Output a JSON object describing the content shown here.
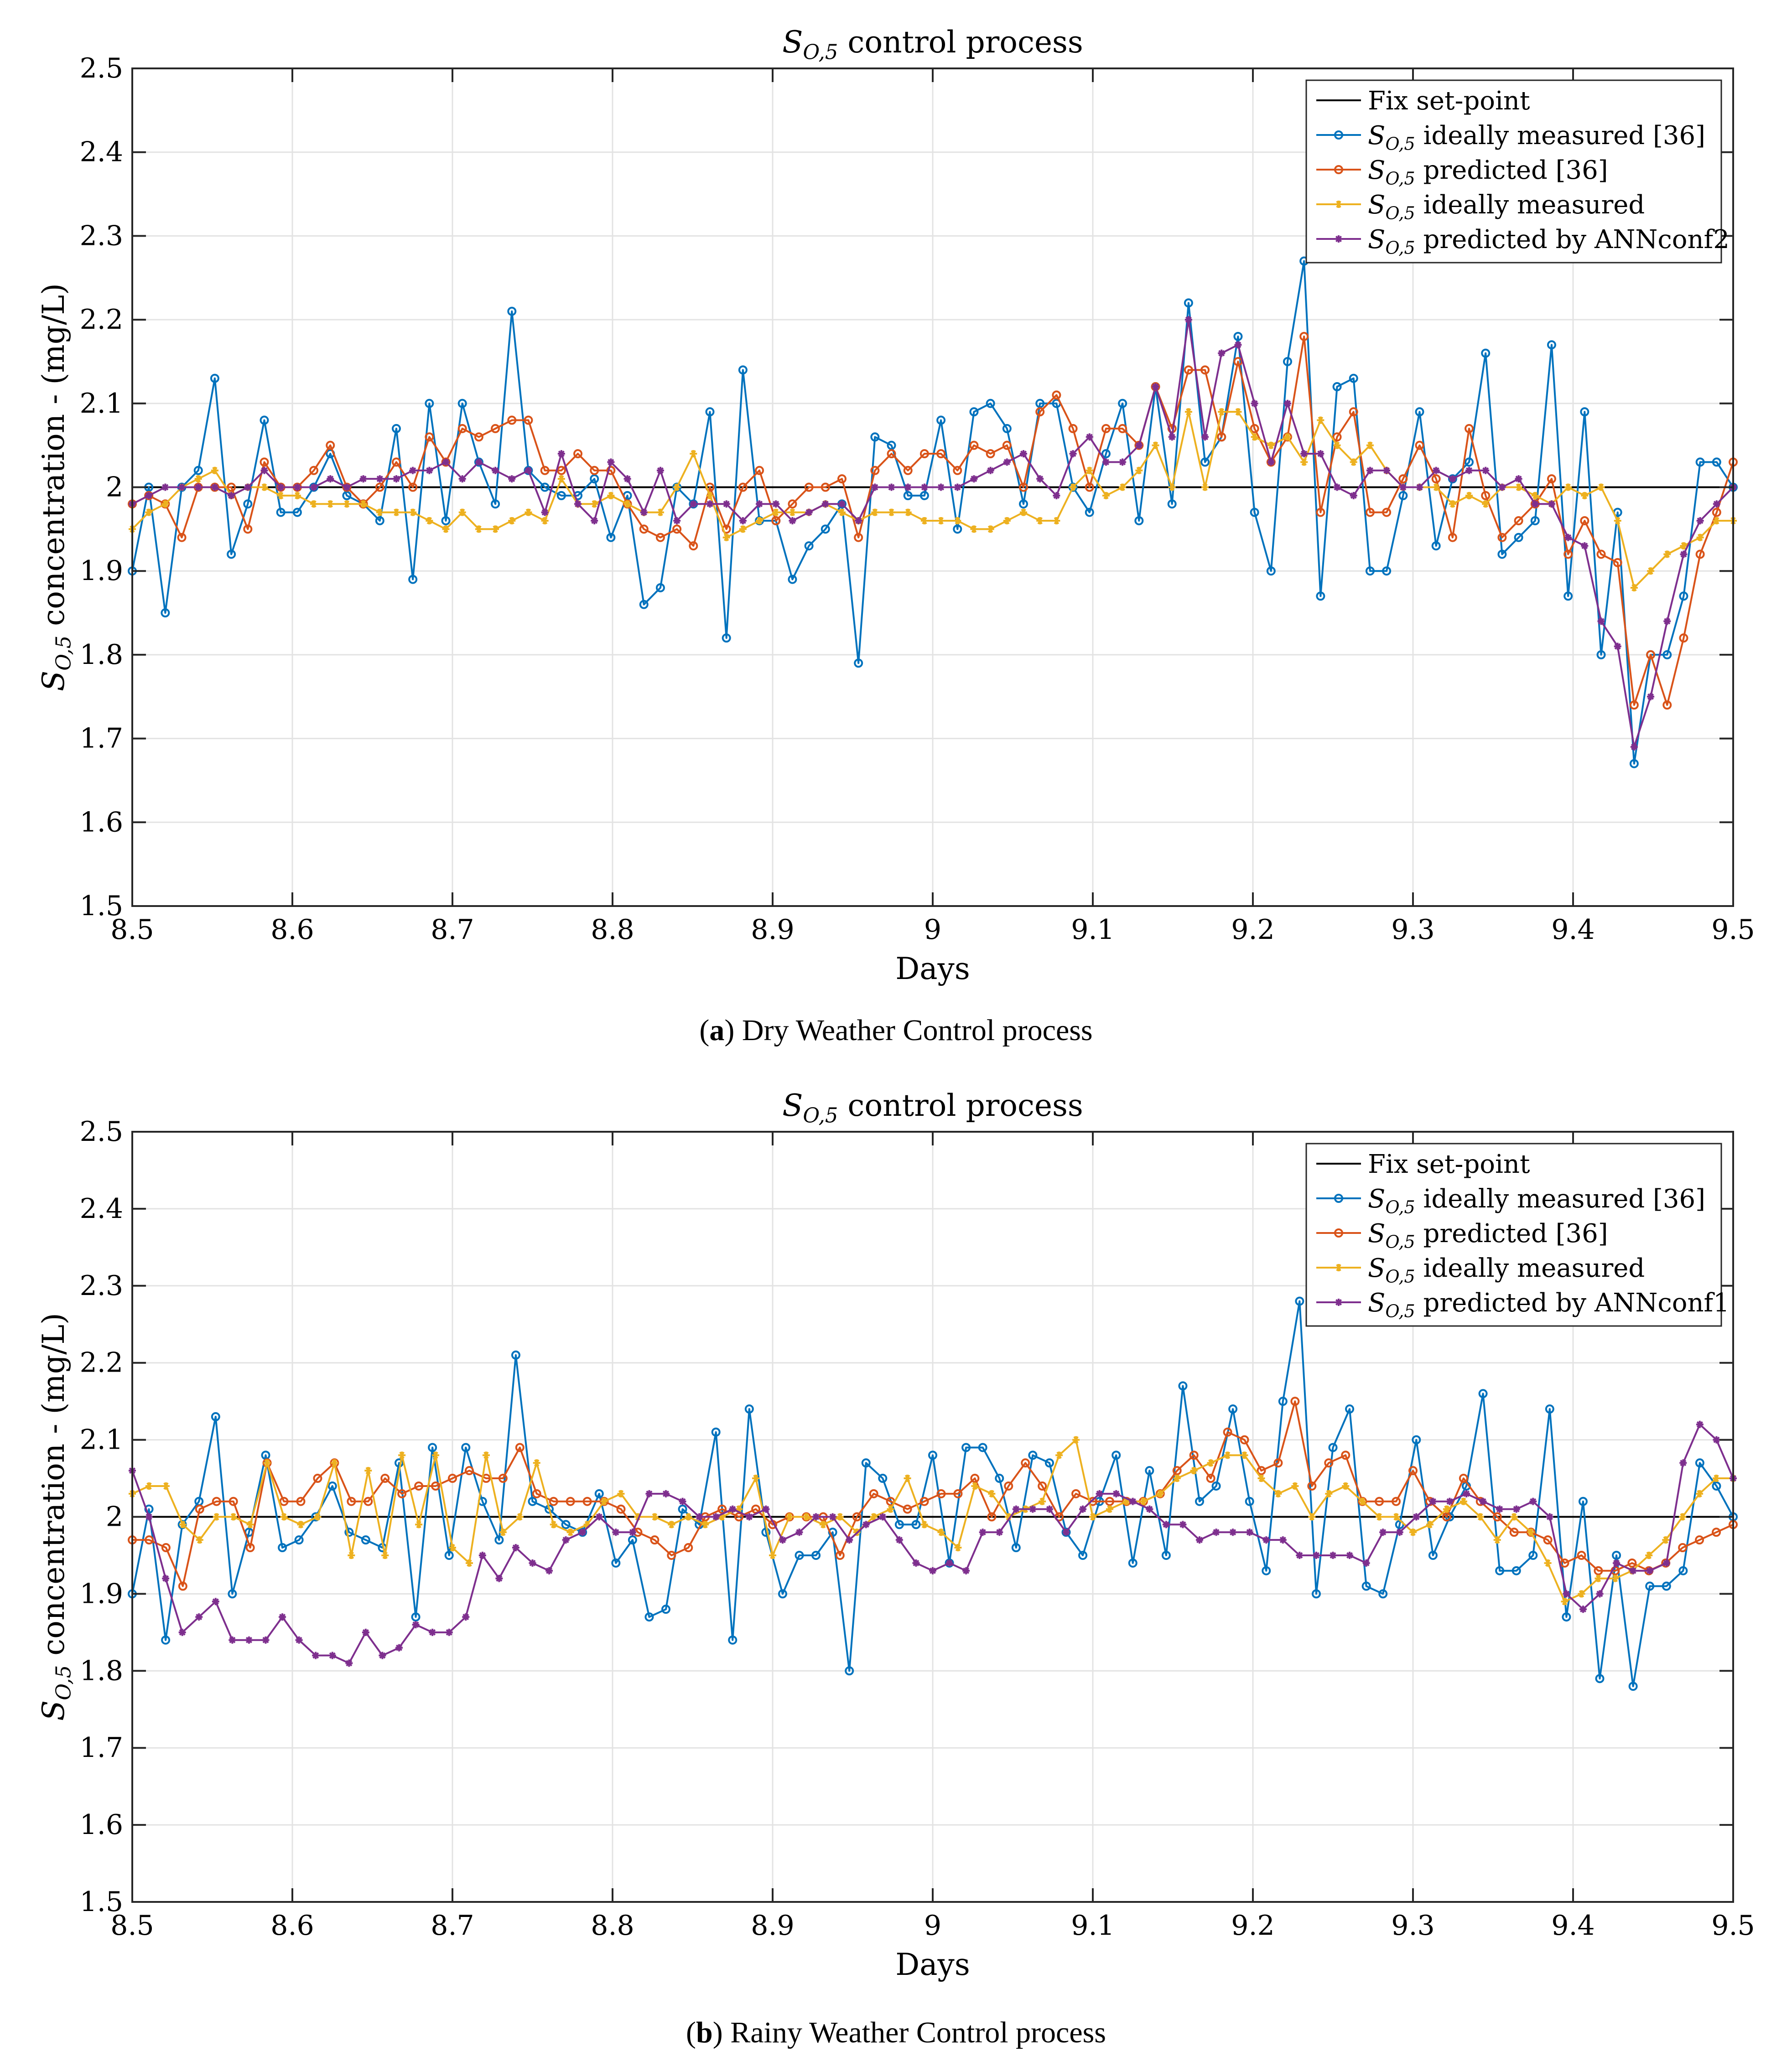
{
  "figure": {
    "captions": [
      {
        "letter": "a",
        "text": " Dry Weather Control process"
      },
      {
        "letter": "b",
        "text": " Rainy Weather Control process"
      }
    ]
  },
  "chart_data": [
    {
      "id": "a",
      "type": "line",
      "title_main": "S",
      "title_sub": "O,5",
      "title_rest": " control process",
      "xlabel": "Days",
      "ylabel_main": "S",
      "ylabel_sub": "O,5",
      "ylabel_rest": " concentration - (mg/L)",
      "xlim": [
        8.5,
        9.5
      ],
      "ylim": [
        1.5,
        2.5
      ],
      "xticks": [
        8.5,
        8.6,
        8.7,
        8.8,
        8.9,
        9.0,
        9.1,
        9.2,
        9.3,
        9.4,
        9.5
      ],
      "xtick_labels": [
        "8.5",
        "8.6",
        "8.7",
        "8.8",
        "8.9",
        "9",
        "9.1",
        "9.2",
        "9.3",
        "9.4",
        "9.5"
      ],
      "yticks": [
        1.5,
        1.6,
        1.7,
        1.8,
        1.9,
        2.0,
        2.1,
        2.2,
        2.3,
        2.4,
        2.5
      ],
      "ytick_labels": [
        "1.5",
        "1.6",
        "1.7",
        "1.8",
        "1.9",
        "2",
        "2.1",
        "2.2",
        "2.3",
        "2.4",
        "2.5"
      ],
      "grid": true,
      "legend_position": "top-right",
      "x_start": 8.5,
      "x_step": 0.0104,
      "setpoint": 2.0,
      "series": [
        {
          "name": "Fix set-point",
          "legend_main": "Fix set-point",
          "legend_sub": "",
          "legend_rest": "",
          "color": "#000000",
          "marker": "none"
        },
        {
          "name": "S_O,5 ideally measured [36]",
          "legend_main": "S",
          "legend_sub": "O,5",
          "legend_rest": " ideally measured [36]",
          "color": "#0072BD",
          "marker": "circle",
          "values": [
            1.9,
            2.0,
            1.85,
            2.0,
            2.02,
            2.13,
            1.92,
            1.98,
            2.08,
            1.97,
            1.97,
            2.0,
            2.04,
            1.99,
            1.98,
            1.96,
            2.07,
            1.89,
            2.1,
            1.96,
            2.1,
            2.03,
            1.98,
            2.21,
            2.02,
            2.0,
            1.99,
            1.99,
            2.01,
            1.94,
            1.99,
            1.86,
            1.88,
            2.0,
            1.98,
            2.09,
            1.82,
            2.14,
            1.96,
            1.96,
            1.89,
            1.93,
            1.95,
            1.98,
            1.79,
            2.06,
            2.05,
            1.99,
            1.99,
            2.08,
            1.95,
            2.09,
            2.1,
            2.07,
            1.98,
            2.1,
            2.1,
            2.0,
            1.97,
            2.04,
            2.1,
            1.96,
            2.12,
            1.98,
            2.22,
            2.03,
            2.06,
            2.18,
            1.97,
            1.9,
            2.15,
            2.27,
            1.87,
            2.12,
            2.13,
            1.9,
            1.9,
            1.99,
            2.09,
            1.93,
            2.01,
            2.03,
            2.16,
            1.92,
            1.94,
            1.96,
            2.17,
            1.87,
            2.09,
            1.8,
            1.97,
            1.67,
            1.8,
            1.8,
            1.87,
            2.03,
            2.03,
            2.0
          ]
        },
        {
          "name": "S_O,5 predicted [36]",
          "legend_main": "S",
          "legend_sub": "O,5",
          "legend_rest": " predicted [36]",
          "color": "#D95319",
          "marker": "circle",
          "values": [
            1.98,
            1.99,
            1.98,
            1.94,
            2.0,
            2.0,
            2.0,
            1.95,
            2.03,
            2.0,
            2.0,
            2.02,
            2.05,
            2.0,
            1.98,
            2.0,
            2.03,
            2.0,
            2.06,
            2.03,
            2.07,
            2.06,
            2.07,
            2.08,
            2.08,
            2.02,
            2.02,
            2.04,
            2.02,
            2.02,
            1.98,
            1.95,
            1.94,
            1.95,
            1.93,
            2.0,
            1.95,
            2.0,
            2.02,
            1.96,
            1.98,
            2.0,
            2.0,
            2.01,
            1.94,
            2.02,
            2.04,
            2.02,
            2.04,
            2.04,
            2.02,
            2.05,
            2.04,
            2.05,
            2.0,
            2.09,
            2.11,
            2.07,
            2.0,
            2.07,
            2.07,
            2.05,
            2.12,
            2.07,
            2.14,
            2.14,
            2.06,
            2.15,
            2.07,
            2.03,
            2.06,
            2.18,
            1.97,
            2.06,
            2.09,
            1.97,
            1.97,
            2.01,
            2.05,
            2.01,
            1.94,
            2.07,
            1.99,
            1.94,
            1.96,
            1.98,
            2.01,
            1.92,
            1.96,
            1.92,
            1.91,
            1.74,
            1.8,
            1.74,
            1.82,
            1.92,
            1.97,
            2.03
          ]
        },
        {
          "name": "S_O,5 ideally measured",
          "legend_main": "S",
          "legend_sub": "O,5",
          "legend_rest": " ideally measured",
          "color": "#EDB120",
          "marker": "star",
          "values": [
            1.95,
            1.97,
            1.98,
            2.0,
            2.01,
            2.02,
            1.99,
            2.0,
            2.0,
            1.99,
            1.99,
            1.98,
            1.98,
            1.98,
            1.98,
            1.97,
            1.97,
            1.97,
            1.96,
            1.95,
            1.97,
            1.95,
            1.95,
            1.96,
            1.97,
            1.96,
            2.01,
            1.98,
            1.98,
            1.99,
            1.98,
            1.97,
            1.97,
            2.0,
            2.04,
            1.99,
            1.94,
            1.95,
            1.96,
            1.97,
            1.97,
            1.97,
            1.98,
            1.97,
            1.96,
            1.97,
            1.97,
            1.97,
            1.96,
            1.96,
            1.96,
            1.95,
            1.95,
            1.96,
            1.97,
            1.96,
            1.96,
            2.0,
            2.02,
            1.99,
            2.0,
            2.02,
            2.05,
            2.0,
            2.09,
            2.0,
            2.09,
            2.09,
            2.06,
            2.05,
            2.06,
            2.03,
            2.08,
            2.05,
            2.03,
            2.05,
            2.02,
            2.0,
            2.0,
            2.0,
            1.98,
            1.99,
            1.98,
            2.0,
            2.0,
            1.99,
            1.98,
            2.0,
            1.99,
            2.0,
            1.96,
            1.88,
            1.9,
            1.92,
            1.93,
            1.94,
            1.96,
            1.96
          ]
        },
        {
          "name": "S_O,5 predicted by ANNconf2",
          "legend_main": "S",
          "legend_sub": "O,5",
          "legend_rest": " predicted by ANNconf2",
          "color": "#7E2F8E",
          "marker": "asterisk",
          "values": [
            1.98,
            1.99,
            2.0,
            2.0,
            2.0,
            2.0,
            1.99,
            2.0,
            2.02,
            2.0,
            2.0,
            2.0,
            2.01,
            2.0,
            2.01,
            2.01,
            2.01,
            2.02,
            2.02,
            2.03,
            2.01,
            2.03,
            2.02,
            2.01,
            2.02,
            1.97,
            2.04,
            1.98,
            1.96,
            2.03,
            2.01,
            1.97,
            2.02,
            1.96,
            1.98,
            1.98,
            1.98,
            1.96,
            1.98,
            1.98,
            1.96,
            1.97,
            1.98,
            1.98,
            1.96,
            2.0,
            2.0,
            2.0,
            2.0,
            2.0,
            2.0,
            2.01,
            2.02,
            2.03,
            2.04,
            2.01,
            1.99,
            2.04,
            2.06,
            2.03,
            2.03,
            2.05,
            2.12,
            2.06,
            2.2,
            2.06,
            2.16,
            2.17,
            2.1,
            2.03,
            2.1,
            2.04,
            2.04,
            2.0,
            1.99,
            2.02,
            2.02,
            2.0,
            2.0,
            2.02,
            2.01,
            2.02,
            2.02,
            2.0,
            2.01,
            1.98,
            1.98,
            1.94,
            1.93,
            1.84,
            1.81,
            1.69,
            1.75,
            1.84,
            1.92,
            1.96,
            1.98,
            2.0
          ]
        }
      ]
    },
    {
      "id": "b",
      "type": "line",
      "title_main": "S",
      "title_sub": "O,5",
      "title_rest": " control process",
      "xlabel": "Days",
      "ylabel_main": "S",
      "ylabel_sub": "O,5",
      "ylabel_rest": " concentration - (mg/L)",
      "xlim": [
        8.5,
        9.5
      ],
      "ylim": [
        1.5,
        2.5
      ],
      "xticks": [
        8.5,
        8.6,
        8.7,
        8.8,
        8.9,
        9.0,
        9.1,
        9.2,
        9.3,
        9.4,
        9.5
      ],
      "xtick_labels": [
        "8.5",
        "8.6",
        "8.7",
        "8.8",
        "8.9",
        "9",
        "9.1",
        "9.2",
        "9.3",
        "9.4",
        "9.5"
      ],
      "yticks": [
        1.5,
        1.6,
        1.7,
        1.8,
        1.9,
        2.0,
        2.1,
        2.2,
        2.3,
        2.4,
        2.5
      ],
      "ytick_labels": [
        "1.5",
        "1.6",
        "1.7",
        "1.8",
        "1.9",
        "2",
        "2.1",
        "2.2",
        "2.3",
        "2.4",
        "2.5"
      ],
      "grid": true,
      "legend_position": "top-right",
      "x_start": 8.5,
      "x_step": 0.0104,
      "setpoint": 2.0,
      "series": [
        {
          "name": "Fix set-point",
          "legend_main": "Fix set-point",
          "legend_sub": "",
          "legend_rest": "",
          "color": "#000000",
          "marker": "none"
        },
        {
          "name": "S_O,5 ideally measured [36]",
          "legend_main": "S",
          "legend_sub": "O,5",
          "legend_rest": " ideally measured [36]",
          "color": "#0072BD",
          "marker": "circle",
          "values": [
            1.9,
            2.01,
            1.84,
            1.99,
            2.02,
            2.13,
            1.9,
            1.98,
            2.08,
            1.96,
            1.97,
            2.0,
            2.04,
            1.98,
            1.97,
            1.96,
            2.07,
            1.87,
            2.09,
            1.95,
            2.09,
            2.02,
            1.97,
            2.21,
            2.02,
            2.01,
            1.99,
            1.98,
            2.03,
            1.94,
            1.97,
            1.87,
            1.88,
            2.01,
            1.99,
            2.11,
            1.84,
            2.14,
            1.98,
            1.9,
            1.95,
            1.95,
            1.98,
            1.8,
            2.07,
            2.05,
            1.99,
            1.99,
            2.08,
            1.94,
            2.09,
            2.09,
            2.05,
            1.96,
            2.08,
            2.07,
            1.98,
            1.95,
            2.02,
            2.08,
            1.94,
            2.06,
            1.95,
            2.17,
            2.02,
            2.04,
            2.14,
            2.02,
            1.93,
            2.15,
            2.28,
            1.9,
            2.09,
            2.14,
            1.91,
            1.9,
            1.99,
            2.1,
            1.95,
            2.0,
            2.04,
            2.16,
            1.93,
            1.93,
            1.95,
            2.14,
            1.87,
            2.02,
            1.79,
            1.95,
            1.78,
            1.91,
            1.91,
            1.93,
            2.07,
            2.04,
            2.0
          ]
        },
        {
          "name": "S_O,5 predicted [36]",
          "legend_main": "S",
          "legend_sub": "O,5",
          "legend_rest": " predicted [36]",
          "color": "#D95319",
          "marker": "circle",
          "values": [
            1.97,
            1.97,
            1.96,
            1.91,
            2.01,
            2.02,
            2.02,
            1.96,
            2.07,
            2.02,
            2.02,
            2.05,
            2.07,
            2.02,
            2.02,
            2.05,
            2.03,
            2.04,
            2.04,
            2.05,
            2.06,
            2.05,
            2.05,
            2.09,
            2.03,
            2.02,
            2.02,
            2.02,
            2.02,
            2.01,
            1.98,
            1.97,
            1.95,
            1.96,
            2.0,
            2.01,
            2.0,
            2.01,
            1.99,
            2.0,
            2.0,
            2.0,
            1.95,
            2.0,
            2.03,
            2.02,
            2.01,
            2.02,
            2.03,
            2.03,
            2.05,
            2.0,
            2.04,
            2.07,
            2.04,
            2.0,
            2.03,
            2.02,
            2.02,
            2.02,
            2.02,
            2.03,
            2.06,
            2.08,
            2.05,
            2.11,
            2.1,
            2.06,
            2.07,
            2.15,
            2.04,
            2.07,
            2.08,
            2.02,
            2.02,
            2.02,
            2.06,
            2.02,
            2.0,
            2.05,
            2.02,
            2.0,
            1.98,
            1.98,
            1.97,
            1.94,
            1.95,
            1.93,
            1.93,
            1.94,
            1.93,
            1.94,
            1.96,
            1.97,
            1.98,
            1.99
          ]
        },
        {
          "name": "S_O,5 ideally measured",
          "legend_main": "S",
          "legend_sub": "O,5",
          "legend_rest": " ideally measured",
          "color": "#EDB120",
          "marker": "star",
          "values": [
            2.03,
            2.04,
            2.04,
            1.99,
            1.97,
            2.0,
            2.0,
            1.99,
            2.07,
            2.0,
            1.99,
            2.0,
            2.07,
            1.95,
            2.06,
            1.95,
            2.08,
            1.99,
            2.08,
            1.96,
            1.94,
            2.08,
            1.98,
            2.0,
            2.07,
            1.99,
            1.98,
            1.99,
            2.02,
            2.03,
            2.0,
            2.0,
            1.99,
            2.0,
            1.99,
            2.0,
            2.01,
            2.05,
            1.95,
            2.0,
            2.0,
            1.99,
            2.0,
            1.98,
            2.0,
            2.01,
            2.05,
            1.99,
            1.98,
            1.96,
            2.04,
            2.03,
            2.0,
            2.01,
            2.02,
            2.08,
            2.1,
            2.0,
            2.01,
            2.02,
            2.02,
            2.03,
            2.05,
            2.06,
            2.07,
            2.08,
            2.08,
            2.05,
            2.03,
            2.04,
            2.0,
            2.03,
            2.04,
            2.02,
            2.0,
            2.0,
            1.98,
            1.99,
            2.01,
            2.02,
            2.0,
            1.97,
            2.0,
            1.98,
            1.94,
            1.89,
            1.9,
            1.92,
            1.92,
            1.93,
            1.95,
            1.97,
            2.0,
            2.03,
            2.05,
            2.05
          ]
        },
        {
          "name": "S_O,5 predicted by ANNconf1",
          "legend_main": "S",
          "legend_sub": "O,5",
          "legend_rest": " predicted by ANNconf1",
          "color": "#7E2F8E",
          "marker": "asterisk",
          "values": [
            2.06,
            2.0,
            1.92,
            1.85,
            1.87,
            1.89,
            1.84,
            1.84,
            1.84,
            1.87,
            1.84,
            1.82,
            1.82,
            1.81,
            1.85,
            1.82,
            1.83,
            1.86,
            1.85,
            1.85,
            1.87,
            1.95,
            1.92,
            1.96,
            1.94,
            1.93,
            1.97,
            1.98,
            2.0,
            1.98,
            1.98,
            2.03,
            2.03,
            2.02,
            2.0,
            2.0,
            2.01,
            2.0,
            2.01,
            1.97,
            1.98,
            2.0,
            2.0,
            1.97,
            1.99,
            2.0,
            1.97,
            1.94,
            1.93,
            1.94,
            1.93,
            1.98,
            1.98,
            2.01,
            2.01,
            2.01,
            1.98,
            2.01,
            2.03,
            2.03,
            2.02,
            2.01,
            1.99,
            1.99,
            1.97,
            1.98,
            1.98,
            1.98,
            1.97,
            1.97,
            1.95,
            1.95,
            1.95,
            1.95,
            1.94,
            1.98,
            1.98,
            2.0,
            2.02,
            2.02,
            2.03,
            2.02,
            2.01,
            2.01,
            2.02,
            2.0,
            1.9,
            1.88,
            1.9,
            1.94,
            1.93,
            1.93,
            1.94,
            2.07,
            2.12,
            2.1,
            2.05
          ]
        }
      ]
    }
  ]
}
